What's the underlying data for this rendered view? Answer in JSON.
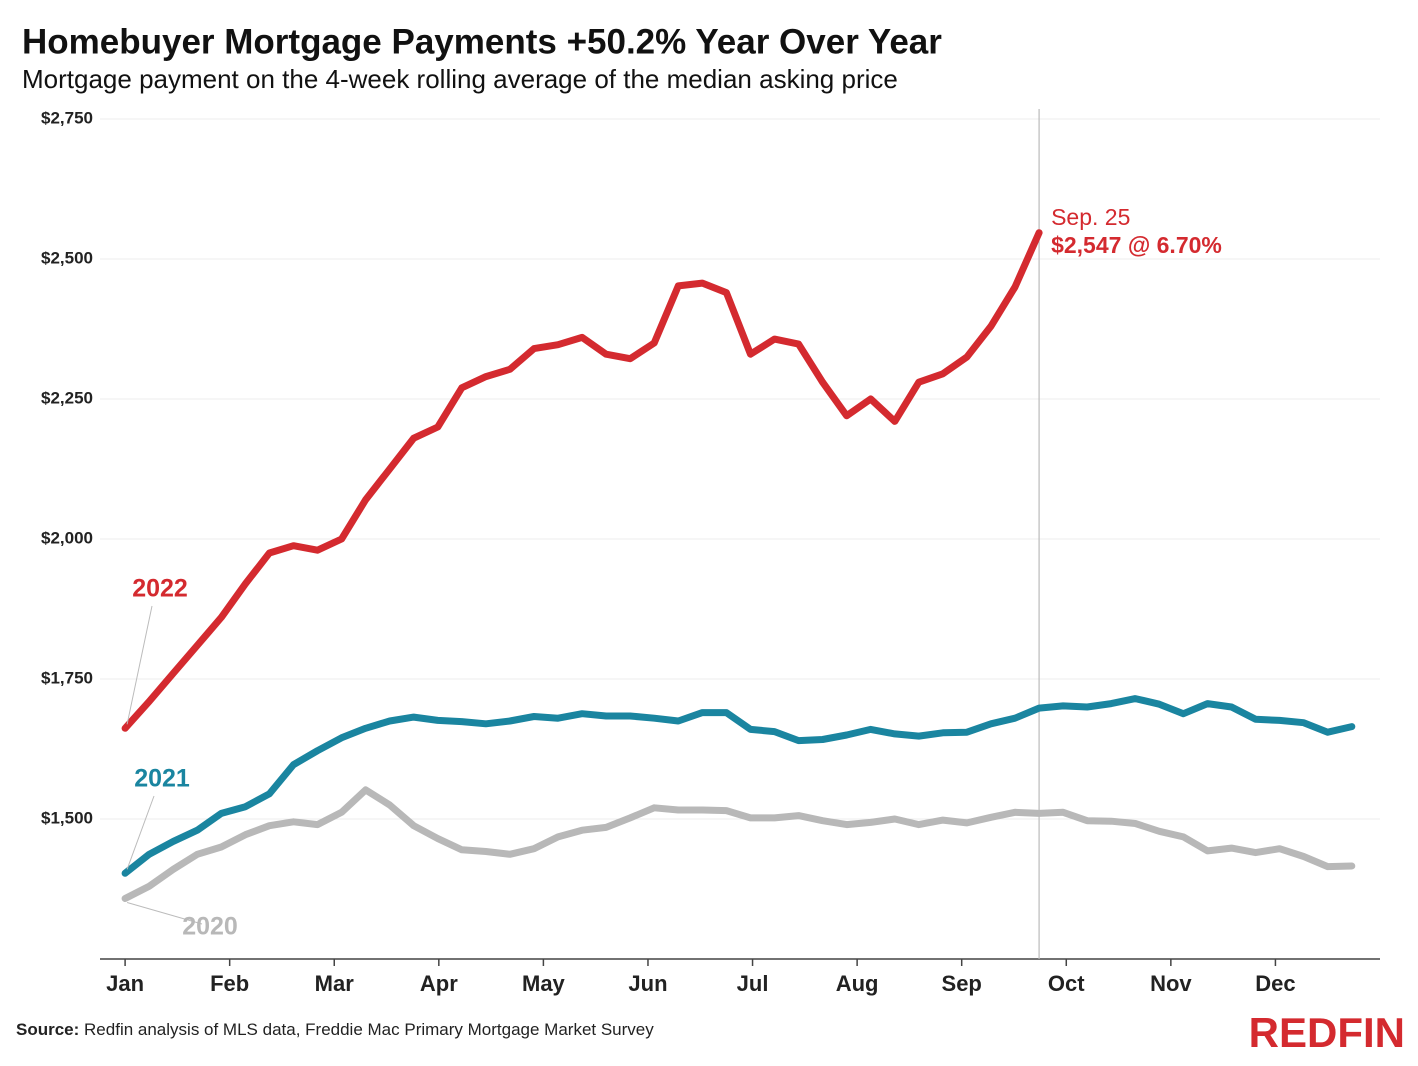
{
  "chart_data": {
    "type": "line",
    "title": "Homebuyer Mortgage Payments +50.2% Year Over Year",
    "subtitle": "Mortgage payment on the 4-week rolling average of the median asking price",
    "x": [
      0,
      0.23,
      0.46,
      0.69,
      0.92,
      1.15,
      1.38,
      1.61,
      1.84,
      2.07,
      2.3,
      2.53,
      2.76,
      2.99,
      3.22,
      3.45,
      3.68,
      3.91,
      4.14,
      4.37,
      4.6,
      4.83,
      5.06,
      5.29,
      5.52,
      5.75,
      5.98,
      6.21,
      6.44,
      6.67,
      6.9,
      7.13,
      7.36,
      7.59,
      7.82,
      8.05,
      8.28,
      8.51,
      8.74,
      8.97,
      9.2,
      9.43,
      9.66,
      9.89,
      10.12,
      10.35,
      10.58,
      10.81,
      11.04,
      11.27,
      11.5,
      11.73
    ],
    "xlim": [
      -0.24,
      12
    ],
    "xticks": [
      {
        "value": 0,
        "label": "Jan"
      },
      {
        "value": 1,
        "label": "Feb"
      },
      {
        "value": 2,
        "label": "Mar"
      },
      {
        "value": 3,
        "label": "Apr"
      },
      {
        "value": 4,
        "label": "May"
      },
      {
        "value": 5,
        "label": "Jun"
      },
      {
        "value": 6,
        "label": "Jul"
      },
      {
        "value": 7,
        "label": "Aug"
      },
      {
        "value": 8,
        "label": "Sep"
      },
      {
        "value": 9,
        "label": "Oct"
      },
      {
        "value": 10,
        "label": "Nov"
      },
      {
        "value": 11,
        "label": "Dec"
      }
    ],
    "ylim": [
      1250,
      2750
    ],
    "yticks": [
      {
        "value": 1500,
        "label": "$1,500"
      },
      {
        "value": 1750,
        "label": "$1,750"
      },
      {
        "value": 2000,
        "label": "$2,000"
      },
      {
        "value": 2250,
        "label": "$2,250"
      },
      {
        "value": 2500,
        "label": "$2,500"
      },
      {
        "value": 2750,
        "label": "$2,750"
      }
    ],
    "grid": true,
    "series": [
      {
        "name": "2022",
        "color": "#d42a2f",
        "values": [
          1662,
          1710,
          1760,
          1810,
          1860,
          1920,
          1975,
          1988,
          1980,
          2000,
          2070,
          2125,
          2180,
          2200,
          2270,
          2290,
          2303,
          2340,
          2347,
          2360,
          2330,
          2322,
          2350,
          2452,
          2457,
          2440,
          2330,
          2357,
          2348,
          2280,
          2220,
          2250,
          2210,
          2280,
          2295,
          2325,
          2380,
          2450,
          2547,
          null,
          null,
          null,
          null,
          null,
          null,
          null,
          null,
          null,
          null,
          null,
          null,
          null
        ]
      },
      {
        "name": "2021",
        "color": "#1a85a0",
        "values": [
          1403,
          1437,
          1460,
          1480,
          1510,
          1522,
          1545,
          1597,
          1622,
          1645,
          1662,
          1675,
          1682,
          1676,
          1674,
          1670,
          1675,
          1683,
          1680,
          1688,
          1684,
          1684,
          1680,
          1675,
          1690,
          1690,
          1660,
          1656,
          1640,
          1642,
          1650,
          1660,
          1652,
          1648,
          1654,
          1655,
          1670,
          1680,
          1698,
          1702,
          1700,
          1706,
          1715,
          1705,
          1688,
          1706,
          1700,
          1678,
          1676,
          1672,
          1655,
          1665
        ]
      },
      {
        "name": "2020",
        "color": "#b8b8b8",
        "values": [
          1358,
          1380,
          1410,
          1437,
          1450,
          1472,
          1488,
          1495,
          1490,
          1512,
          1552,
          1525,
          1488,
          1465,
          1445,
          1442,
          1437,
          1447,
          1468,
          1480,
          1485,
          1502,
          1520,
          1516,
          1516,
          1515,
          1502,
          1502,
          1506,
          1497,
          1490,
          1494,
          1500,
          1490,
          1498,
          1493,
          1503,
          1512,
          1510,
          1512,
          1497,
          1496,
          1492,
          1478,
          1468,
          1443,
          1448,
          1440,
          1447,
          1433,
          1415,
          1416
        ]
      }
    ],
    "annotations": [
      "Sep. 25",
      "$2,547 @ 6.70%"
    ],
    "source_label": "Source:",
    "source": "Redfin analysis of MLS data, Freddie Mac Primary Mortgage Market Survey",
    "logo": "REDFIN"
  }
}
